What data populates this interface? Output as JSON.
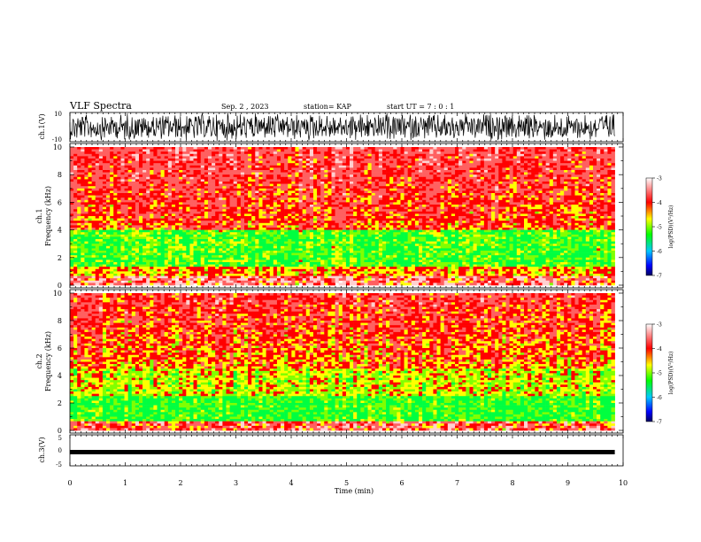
{
  "header": {
    "title": "VLF Spectra",
    "date": "Sep. 2 , 2023",
    "station": "station= KAP",
    "start": "start UT =  7 : 0  : 1"
  },
  "colorbar": {
    "ticks": [
      "-3",
      "-4",
      "-5",
      "-6",
      "-7"
    ],
    "label": "log(PSD)(V²/Hz)",
    "colors": [
      "#000080",
      "#0000ff",
      "#00c8ff",
      "#00ff00",
      "#ffff00",
      "#ff0000",
      "#ffffff"
    ]
  },
  "chart_data": [
    {
      "type": "line",
      "name": "ch1 waveform",
      "ylabel": "ch.1(V)",
      "ylim": [
        -10,
        10
      ],
      "yticks": [
        "10",
        "-10"
      ],
      "xlim": [
        0,
        10
      ]
    },
    {
      "type": "heatmap",
      "name": "ch1 spectrogram",
      "ylabel_top": "ch.1",
      "ylabel": "Frequency (kHz)",
      "ylim": [
        0,
        10
      ],
      "yticks": [
        "0",
        "2",
        "4",
        "6",
        "8",
        "10"
      ],
      "xlim": [
        0,
        9.85
      ]
    },
    {
      "type": "heatmap",
      "name": "ch2 spectrogram",
      "ylabel_top": "ch.2",
      "ylabel": "Frequency (kHz)",
      "ylim": [
        0,
        10
      ],
      "yticks": [
        "0",
        "2",
        "4",
        "6",
        "8",
        "10"
      ],
      "xlim": [
        0,
        9.85
      ]
    },
    {
      "type": "line",
      "name": "ch3 waveform",
      "ylabel": "ch.3(V)",
      "ylim": [
        -5,
        5
      ],
      "yticks": [
        "5",
        "0",
        "-5"
      ],
      "xlim": [
        0,
        10
      ]
    }
  ],
  "xaxis": {
    "label": "Time (min)",
    "ticks": [
      "0",
      "1",
      "2",
      "3",
      "4",
      "5",
      "6",
      "7",
      "8",
      "9",
      "10"
    ]
  }
}
